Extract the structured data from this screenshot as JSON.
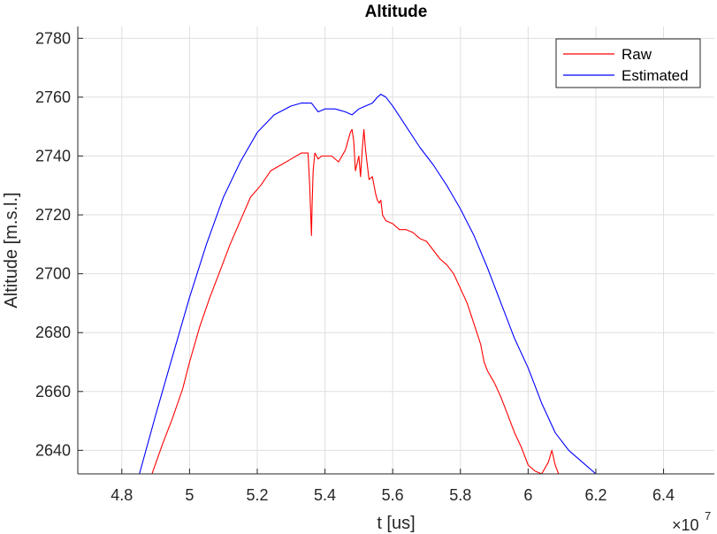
{
  "chart_data": {
    "type": "line",
    "title": "Altitude",
    "xlabel": "t [us]",
    "ylabel": "Altitude [m.s.l.]",
    "x_exponent_base": "×10",
    "x_exponent_power": "7",
    "xlim": [
      4.67,
      6.55
    ],
    "ylim": [
      2632,
      2784
    ],
    "x_ticks": [
      4.8,
      5.0,
      5.2,
      5.4,
      5.6,
      5.8,
      6.0,
      6.2,
      6.4
    ],
    "x_tick_labels": [
      "4.8",
      "5",
      "5.2",
      "5.4",
      "5.6",
      "5.8",
      "6",
      "6.2",
      "6.4"
    ],
    "y_ticks": [
      2640,
      2660,
      2680,
      2700,
      2720,
      2740,
      2760,
      2780
    ],
    "y_tick_labels": [
      "2640",
      "2660",
      "2680",
      "2700",
      "2720",
      "2740",
      "2760",
      "2780"
    ],
    "grid": true,
    "legend_position": "top-right",
    "series": [
      {
        "name": "Raw",
        "color": "#ff0000",
        "x": [
          4.889,
          4.92,
          4.95,
          4.98,
          5.0,
          5.03,
          5.06,
          5.09,
          5.12,
          5.15,
          5.18,
          5.21,
          5.24,
          5.27,
          5.3,
          5.33,
          5.35,
          5.355,
          5.36,
          5.362,
          5.365,
          5.37,
          5.38,
          5.39,
          5.4,
          5.42,
          5.44,
          5.46,
          5.475,
          5.48,
          5.485,
          5.49,
          5.5,
          5.505,
          5.51,
          5.515,
          5.52,
          5.53,
          5.54,
          5.545,
          5.55,
          5.555,
          5.56,
          5.565,
          5.57,
          5.58,
          5.6,
          5.62,
          5.64,
          5.66,
          5.68,
          5.7,
          5.72,
          5.74,
          5.76,
          5.78,
          5.8,
          5.82,
          5.84,
          5.86,
          5.87,
          5.88,
          5.9,
          5.92,
          5.94,
          5.96,
          5.98,
          6.0,
          6.02,
          6.04,
          6.06,
          6.07,
          6.08,
          6.09,
          6.1,
          6.11
        ],
        "y": [
          2632,
          2642,
          2651,
          2661,
          2670,
          2682,
          2692,
          2701,
          2710,
          2718,
          2726,
          2730,
          2735,
          2737,
          2739,
          2741,
          2741,
          2730,
          2713,
          2723,
          2735,
          2741,
          2739,
          2740,
          2740,
          2740,
          2738,
          2742,
          2748,
          2749,
          2745,
          2735,
          2740,
          2733,
          2742,
          2749,
          2742,
          2732,
          2733,
          2730,
          2727,
          2725,
          2724,
          2725,
          2720,
          2718,
          2717,
          2715,
          2715,
          2714,
          2712,
          2711,
          2708,
          2705,
          2703,
          2700,
          2695,
          2690,
          2683,
          2676,
          2670,
          2667,
          2663,
          2658,
          2652,
          2646,
          2641,
          2635,
          2633,
          2632,
          2636,
          2640,
          2635,
          2632,
          2632,
          2632
        ]
      },
      {
        "name": "Estimated",
        "color": "#0000ff",
        "x": [
          4.852,
          4.9,
          4.95,
          5.0,
          5.05,
          5.1,
          5.15,
          5.2,
          5.25,
          5.3,
          5.33,
          5.36,
          5.38,
          5.4,
          5.43,
          5.46,
          5.48,
          5.5,
          5.52,
          5.54,
          5.555,
          5.565,
          5.58,
          5.6,
          5.64,
          5.68,
          5.72,
          5.76,
          5.8,
          5.84,
          5.88,
          5.92,
          5.96,
          6.0,
          6.04,
          6.08,
          6.12,
          6.16,
          6.2
        ],
        "y": [
          2632,
          2652,
          2672,
          2692,
          2710,
          2726,
          2738,
          2748,
          2754,
          2757,
          2758,
          2758,
          2755,
          2756,
          2756,
          2755,
          2754,
          2756,
          2757,
          2758,
          2760,
          2761,
          2760,
          2757,
          2750,
          2743,
          2737,
          2730,
          2722,
          2713,
          2702,
          2690,
          2678,
          2668,
          2656,
          2646,
          2640,
          2636,
          2632
        ]
      }
    ]
  }
}
